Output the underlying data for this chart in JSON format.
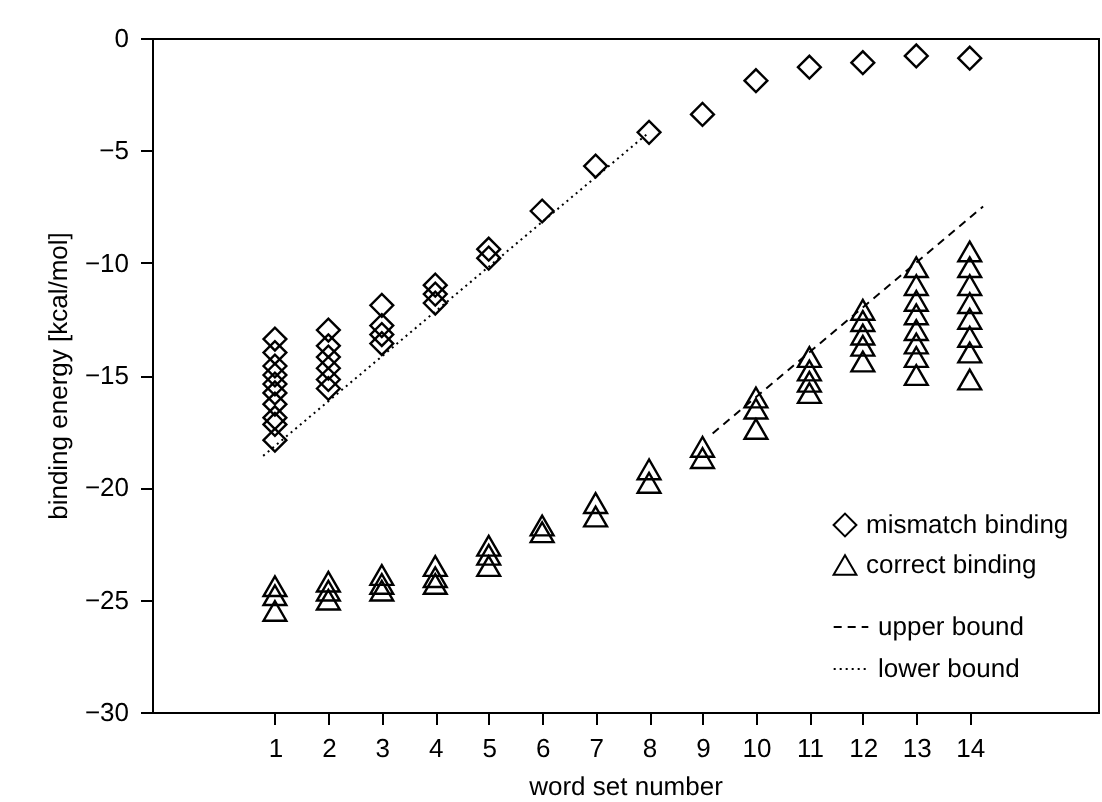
{
  "chart_data": {
    "type": "scatter",
    "xlabel": "word set number",
    "ylabel": "binding energy [kcal/mol]",
    "xlim": [
      -1.3,
      16.4
    ],
    "ylim": [
      -30,
      0
    ],
    "xticks": [
      1,
      2,
      3,
      4,
      5,
      6,
      7,
      8,
      9,
      10,
      11,
      12,
      13,
      14
    ],
    "yticks": [
      0,
      -5,
      -10,
      -15,
      -20,
      -25,
      -30
    ],
    "grid": false,
    "legend": "bottom right",
    "series": [
      {
        "name": "mismatch binding",
        "type": "scatter",
        "marker": "diamond",
        "color": "#000000",
        "x": [
          1,
          1,
          1,
          1,
          1,
          1,
          1,
          1,
          1,
          1,
          2,
          2,
          2,
          2,
          2,
          2,
          3,
          3,
          3,
          3,
          4,
          4,
          4,
          5,
          5,
          6,
          7,
          8,
          9,
          10,
          11,
          12,
          13,
          14
        ],
        "values": [
          -13.4,
          -14.0,
          -14.6,
          -15.0,
          -15.4,
          -15.8,
          -16.3,
          -16.9,
          -17.2,
          -17.9,
          -13.0,
          -13.7,
          -14.2,
          -14.7,
          -15.2,
          -15.6,
          -11.9,
          -12.8,
          -13.2,
          -13.6,
          -11.0,
          -11.4,
          -11.8,
          -9.4,
          -9.8,
          -7.7,
          -5.7,
          -4.2,
          -3.4,
          -1.9,
          -1.3,
          -1.1,
          -0.8,
          -0.9
        ]
      },
      {
        "name": "correct binding",
        "type": "scatter",
        "marker": "triangle",
        "color": "#000000",
        "x": [
          1,
          1,
          1,
          2,
          2,
          2,
          3,
          3,
          3,
          4,
          4,
          4,
          5,
          5,
          5,
          6,
          6,
          7,
          7,
          8,
          8,
          9,
          9,
          10,
          10,
          10,
          11,
          11,
          11,
          11,
          12,
          12,
          12,
          12,
          12,
          13,
          13,
          13,
          13,
          13,
          13,
          13,
          13,
          14,
          14,
          14,
          14,
          14,
          14,
          14,
          14
        ],
        "values": [
          -24.4,
          -24.8,
          -25.5,
          -24.2,
          -24.6,
          -25.0,
          -23.9,
          -24.3,
          -24.6,
          -23.5,
          -24.0,
          -24.3,
          -22.6,
          -23.0,
          -23.5,
          -21.7,
          -22.0,
          -20.7,
          -21.3,
          -19.2,
          -19.8,
          -18.2,
          -18.7,
          -16.0,
          -16.5,
          -17.4,
          -14.2,
          -14.8,
          -15.3,
          -15.8,
          -12.1,
          -12.6,
          -13.2,
          -13.7,
          -14.4,
          -10.2,
          -11.0,
          -11.7,
          -12.3,
          -13.0,
          -13.6,
          -14.2,
          -15.0,
          -9.5,
          -10.2,
          -11.0,
          -11.8,
          -12.5,
          -13.3,
          -14.0,
          -15.2
        ]
      },
      {
        "name": "upper bound",
        "type": "line",
        "line_style": "dashed",
        "color": "#000000",
        "x": [
          9.19,
          14.25
        ],
        "values": [
          -17.6,
          -7.5
        ]
      },
      {
        "name": "lower bound",
        "type": "line",
        "line_style": "dotted",
        "color": "#000000",
        "x": [
          0.78,
          8
        ],
        "values": [
          -18.6,
          -4.2
        ]
      }
    ]
  }
}
